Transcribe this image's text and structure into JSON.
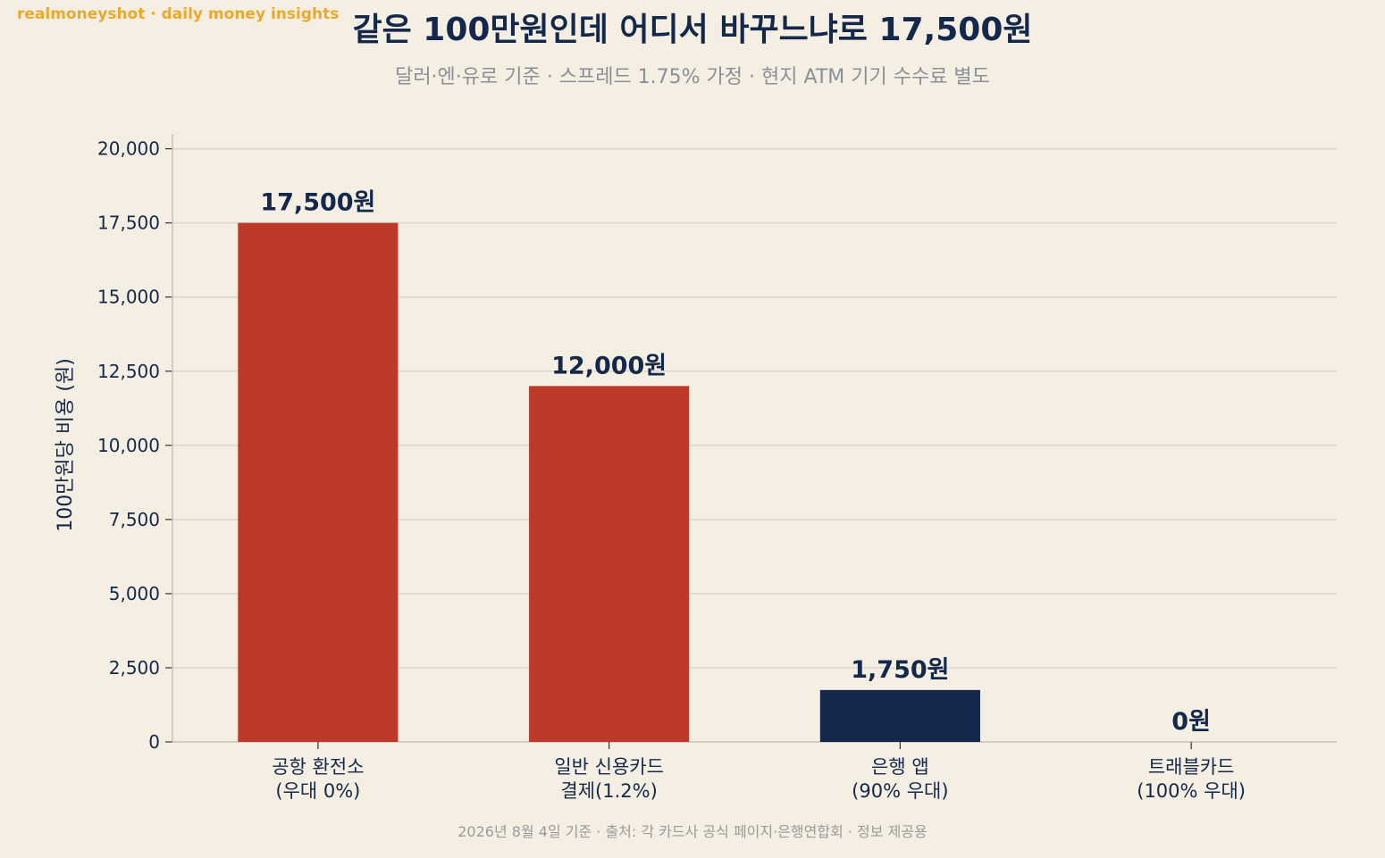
{
  "watermark": "realmoneyshot · daily money insights",
  "footer": "2026년 8월 4일 기준 · 출처: 각 카드사 공식 페이지·은행연합회 · 정보 제공용",
  "colors": {
    "background": "#f4efe2",
    "red": "#bd3a2b",
    "navy": "#14284b",
    "grid": "#dcd7c9",
    "axis": "#c9c3b4"
  },
  "chart_data": {
    "type": "bar",
    "title": "같은 100만원인데 어디서 바꾸느냐로 17,500원",
    "subtitle": "달러·엔·유로 기준 · 스프레드 1.75% 가정 · 현지 ATM 기기 수수료 별도",
    "ylabel": "100만원당 비용 (원)",
    "xlabel": "",
    "ylim": [
      0,
      20500
    ],
    "yticks": [
      0,
      2500,
      5000,
      7500,
      10000,
      12500,
      15000,
      17500,
      20000
    ],
    "ytick_labels": [
      "0",
      "2,500",
      "5,000",
      "7,500",
      "10,000",
      "12,500",
      "15,000",
      "17,500",
      "20,000"
    ],
    "grid": true,
    "categories": [
      [
        "공항 환전소",
        "(우대 0%)"
      ],
      [
        "일반 신용카드",
        "결제(1.2%)"
      ],
      [
        "은행 앱",
        "(90% 우대)"
      ],
      [
        "트래블카드",
        "(100% 우대)"
      ]
    ],
    "values": [
      17500,
      12000,
      1750,
      0
    ],
    "data_labels": [
      "17,500원",
      "12,000원",
      "1,750원",
      "0원"
    ],
    "bar_colors": [
      "#bd3a2b",
      "#bd3a2b",
      "#14284b",
      "#14284b"
    ]
  }
}
